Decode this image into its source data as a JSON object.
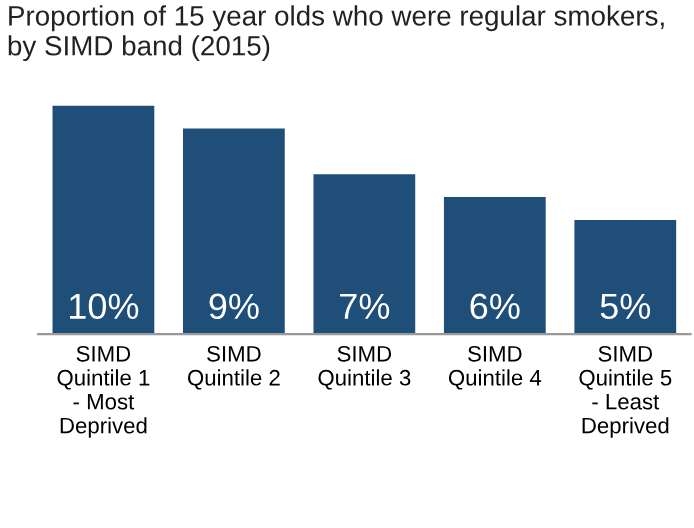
{
  "chart_data": {
    "type": "bar",
    "title": "Proportion of 15 year olds who were regular smokers, by SIMD band (2015)",
    "categories": [
      "SIMD\nQuintile 1\n- Most\nDeprived",
      "SIMD\nQuintile 2",
      "SIMD\nQuintile 3",
      "SIMD\nQuintile 4",
      "SIMD\nQuintile 5\n- Least\nDeprived"
    ],
    "values": [
      10,
      9,
      7,
      6,
      5
    ],
    "value_labels": [
      "10%",
      "9%",
      "7%",
      "6%",
      "5%"
    ],
    "color": "#1f4e79",
    "grid": false,
    "legend": false
  }
}
